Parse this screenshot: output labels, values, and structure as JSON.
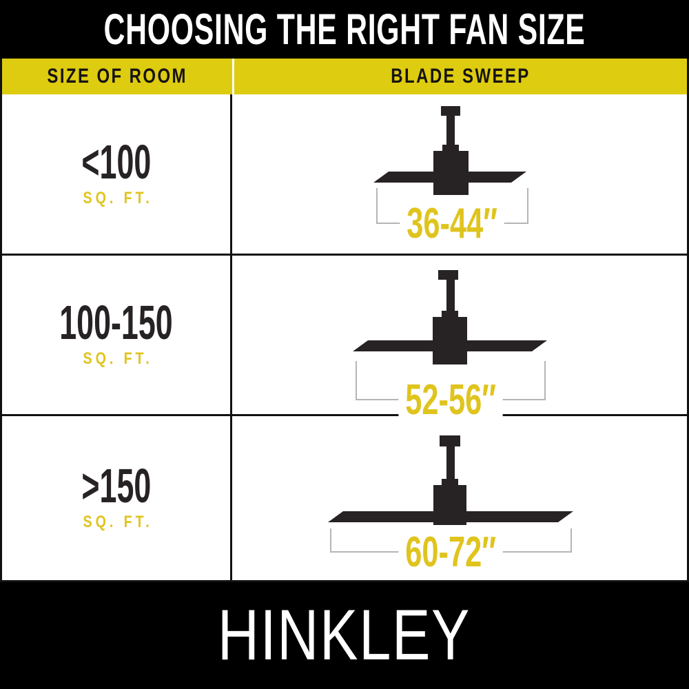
{
  "title": "CHOOSING THE RIGHT FAN SIZE",
  "header": {
    "col1": "SIZE OF ROOM",
    "col2": "BLADE SWEEP"
  },
  "rows": [
    {
      "room_size": "<100",
      "room_unit": "SQ. FT.",
      "blade_sweep": "36-44″"
    },
    {
      "room_size": "100-150",
      "room_unit": "SQ. FT.",
      "blade_sweep": "52-56″"
    },
    {
      "room_size": ">150",
      "room_unit": "SQ. FT.",
      "blade_sweep": "60-72″"
    }
  ],
  "brand": "HINKLEY",
  "colors": {
    "band-yellow": "#DECC10",
    "accent-yellow": "#E0C41E",
    "ink": "#272223",
    "banner-black": "#000000",
    "bracket-gray": "#B5B5B4"
  }
}
